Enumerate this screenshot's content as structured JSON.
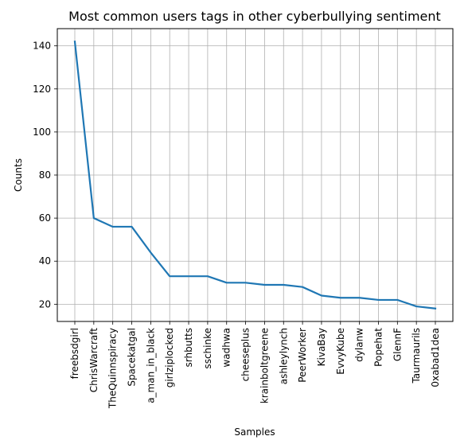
{
  "chart_data": {
    "type": "line",
    "title": "Most common users tags in other cyberbullying sentiment",
    "xlabel": "Samples",
    "ylabel": "Counts",
    "categories": [
      "freebsdgirl",
      "ChrisWarcraft",
      "TheQuinnspiracy",
      "Spacekatgal",
      "a_man_in_black",
      "girlziplocked",
      "srhbutts",
      "sschinke",
      "wadhwa",
      "cheeseplus",
      "krainboltgreene",
      "ashleylynch",
      "PeerWorker",
      "KivaBay",
      "EvvyKube",
      "dylanw",
      "Popehat",
      "GlennF",
      "Taurmaurils",
      "0xabad1dea"
    ],
    "values": [
      142,
      60,
      56,
      56,
      44,
      33,
      33,
      33,
      30,
      30,
      29,
      29,
      28,
      24,
      23,
      23,
      22,
      22,
      19,
      18
    ],
    "yticks": [
      20,
      40,
      60,
      80,
      100,
      120,
      140
    ],
    "ylim": [
      12,
      148
    ],
    "grid": true,
    "legend": "none",
    "colors": {
      "line": "#1f77b4",
      "grid": "#b0b0b0",
      "axis": "#000000"
    }
  }
}
